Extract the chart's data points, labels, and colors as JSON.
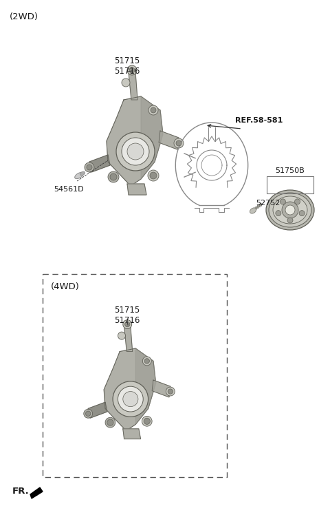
{
  "bg_color": "#ffffff",
  "title_2wd": "(2WD)",
  "title_4wd": "(4WD)",
  "label_51715_51716": "51715\n51716",
  "label_54561D": "54561D",
  "label_ref": "REF.58-581",
  "label_51750B": "51750B",
  "label_52752": "52752",
  "label_fr": "FR.",
  "knuckle_light": "#c8c8c0",
  "knuckle_mid": "#b0b0a8",
  "knuckle_dark": "#909088",
  "knuckle_darker": "#787870",
  "outline_color": "#606058",
  "text_color": "#1a1a1a",
  "dashed_box_color": "#555555",
  "line_color": "#333333",
  "shield_color": "#888888",
  "hub_color": "#a0a098"
}
